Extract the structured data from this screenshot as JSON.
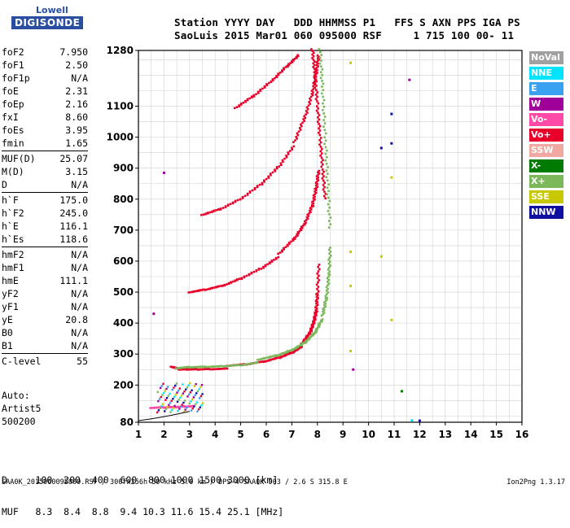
{
  "logo": {
    "line1": "Lowell",
    "line2": "DIGISONDE"
  },
  "header": {
    "line1": "Station YYYY DAY   DDD HHMMSS P1   FFS S AXN PPS IGA PS",
    "line2": "SaoLuis 2015 Mar01 060 095000 RSF     1 715 100 00- 11"
  },
  "params": [
    [
      {
        "name": "foF2",
        "value": "7.950"
      },
      {
        "name": "foF1",
        "value": "2.50"
      },
      {
        "name": "foF1p",
        "value": "N/A"
      },
      {
        "name": "foE",
        "value": "2.31"
      },
      {
        "name": "foEp",
        "value": "2.16"
      },
      {
        "name": "fxI",
        "value": "8.60"
      },
      {
        "name": "foEs",
        "value": "3.95"
      },
      {
        "name": "fmin",
        "value": "1.65"
      }
    ],
    [
      {
        "name": "MUF(D)",
        "value": "25.07"
      },
      {
        "name": "M(D)",
        "value": "3.15"
      },
      {
        "name": "D",
        "value": "N/A"
      }
    ],
    [
      {
        "name": "h`F",
        "value": "175.0"
      },
      {
        "name": "h`F2",
        "value": "245.0"
      },
      {
        "name": "h`E",
        "value": "116.1"
      },
      {
        "name": "h`Es",
        "value": "118.6"
      }
    ],
    [
      {
        "name": "hmF2",
        "value": "N/A"
      },
      {
        "name": "hmF1",
        "value": "N/A"
      },
      {
        "name": "hmE",
        "value": "111.1"
      },
      {
        "name": "yF2",
        "value": "N/A"
      },
      {
        "name": "yF1",
        "value": "N/A"
      },
      {
        "name": "yE",
        "value": "20.8"
      },
      {
        "name": "B0",
        "value": "N/A"
      },
      {
        "name": "B1",
        "value": "N/A"
      }
    ],
    [
      {
        "name": "C-level",
        "value": "55"
      }
    ]
  ],
  "status": {
    "line1": "Auto:",
    "line2": "Artist5",
    "line3": "500200"
  },
  "muf_table": {
    "d_row": "D     100  200  400  600  800 1000 1500 3000 [km]",
    "muf_row": "MUF   8.3  8.4  8.8  9.4 10.3 11.6 15.4 25.1 [MHz]"
  },
  "footer": {
    "left": "SAA0K_2015060095000.RSF / 300fx256h 50 kHz 5.0 km / DPS-4 SAA0K 903 / 2.6 S 315.8 E",
    "right": "Ion2Png 1.3.17"
  },
  "legend": [
    {
      "label": "NoVal",
      "color": "#a0a0a0"
    },
    {
      "label": "NNE",
      "color": "#00e5ff"
    },
    {
      "label": "E",
      "color": "#3aa0f0"
    },
    {
      "label": "W",
      "color": "#a0009a"
    },
    {
      "label": "Vo-",
      "color": "#ff4aa8"
    },
    {
      "label": "Vo+",
      "color": "#e8002a"
    },
    {
      "label": "SSW",
      "color": "#f0a8a0"
    },
    {
      "label": "X-",
      "color": "#007a00"
    },
    {
      "label": "X+",
      "color": "#7ab85a"
    },
    {
      "label": "SSE",
      "color": "#c8c800"
    },
    {
      "label": "NNW",
      "color": "#1010a0"
    }
  ],
  "chart_data": {
    "type": "scatter",
    "xlim": [
      1,
      16
    ],
    "ylim": [
      80,
      1280
    ],
    "xticks": [
      1,
      2,
      3,
      4,
      5,
      6,
      7,
      8,
      9,
      10,
      11,
      12,
      13,
      14,
      15,
      16
    ],
    "yticks": [
      80,
      200,
      300,
      400,
      500,
      600,
      700,
      800,
      900,
      1000,
      1100,
      1280
    ],
    "grid": true,
    "legend_position": "right",
    "traces": [
      {
        "name": "Vo+",
        "color": "#e8002a",
        "x": [
          2.3,
          2.6,
          2.9,
          3.3,
          3.8,
          4.5,
          5.2,
          5.9,
          6.5,
          7.0,
          7.4,
          7.7,
          7.85,
          7.95,
          8.0,
          8.05
        ],
        "y": [
          255,
          248,
          250,
          252,
          255,
          258,
          264,
          275,
          290,
          308,
          330,
          365,
          400,
          440,
          500,
          600
        ]
      },
      {
        "name": "X+",
        "color": "#7ab85a",
        "x": [
          2.5,
          3.0,
          3.6,
          4.3,
          5.0,
          5.7,
          6.4,
          7.0,
          7.5,
          7.9,
          8.2,
          8.35,
          8.45,
          8.5
        ],
        "y": [
          250,
          255,
          258,
          262,
          268,
          278,
          292,
          312,
          338,
          372,
          420,
          480,
          560,
          650
        ]
      },
      {
        "name": "Vo+",
        "color": "#e8002a",
        "x": [
          3.0,
          3.6,
          4.3,
          5.0,
          5.8,
          6.5,
          7.1,
          7.5,
          7.8,
          7.95,
          8.05
        ],
        "y": [
          495,
          505,
          520,
          545,
          580,
          620,
          670,
          720,
          780,
          840,
          900
        ]
      },
      {
        "name": "Vo+",
        "color": "#e8002a",
        "x": [
          3.5,
          4.2,
          5.0,
          5.8,
          6.5,
          7.1,
          7.5,
          7.8,
          7.95,
          8.05
        ],
        "y": [
          745,
          765,
          800,
          850,
          910,
          980,
          1060,
          1140,
          1210,
          1270
        ]
      },
      {
        "name": "Vo+",
        "color": "#e8002a",
        "x": [
          4.8,
          5.5,
          6.2,
          6.8,
          7.3
        ],
        "y": [
          1090,
          1130,
          1180,
          1230,
          1270
        ]
      },
      {
        "name": "Vo+",
        "color": "#e8002a",
        "x": [
          7.8,
          7.9,
          8.0,
          8.1,
          8.2,
          8.3
        ],
        "y": [
          1280,
          1200,
          1100,
          1000,
          900,
          800
        ]
      },
      {
        "name": "X+",
        "color": "#7ab85a",
        "x": [
          8.1,
          8.2,
          8.3,
          8.4,
          8.5
        ],
        "y": [
          1280,
          1150,
          1000,
          850,
          700
        ]
      },
      {
        "name": "Vo-",
        "color": "#ff4aa8",
        "x": [
          1.5,
          2.0,
          2.4,
          2.8,
          3.2
        ],
        "y": [
          122,
          125,
          128,
          132,
          135
        ]
      }
    ],
    "isolated_points": [
      {
        "name": "W",
        "color": "#a0009a",
        "x": 2.0,
        "y": 885
      },
      {
        "name": "W",
        "color": "#a0009a",
        "x": 1.6,
        "y": 430
      },
      {
        "name": "W",
        "color": "#a0009a",
        "x": 11.6,
        "y": 1185
      },
      {
        "name": "NNW",
        "color": "#1010a0",
        "x": 10.9,
        "y": 1075
      },
      {
        "name": "NNW",
        "color": "#1010a0",
        "x": 10.5,
        "y": 965
      },
      {
        "name": "NNW",
        "color": "#1010a0",
        "x": 10.9,
        "y": 980
      },
      {
        "name": "NNW",
        "color": "#1010a0",
        "x": 12.0,
        "y": 85
      },
      {
        "name": "SSE",
        "color": "#c8c800",
        "x": 9.3,
        "y": 1240
      },
      {
        "name": "SSE",
        "color": "#c8c800",
        "x": 10.9,
        "y": 870
      },
      {
        "name": "SSE",
        "color": "#c8c800",
        "x": 9.3,
        "y": 630
      },
      {
        "name": "SSE",
        "color": "#c8c800",
        "x": 10.5,
        "y": 615
      },
      {
        "name": "SSE",
        "color": "#c8c800",
        "x": 9.3,
        "y": 520
      },
      {
        "name": "SSE",
        "color": "#c8c800",
        "x": 10.9,
        "y": 410
      },
      {
        "name": "SSE",
        "color": "#c8c800",
        "x": 9.3,
        "y": 310
      },
      {
        "name": "X-",
        "color": "#007a00",
        "x": 11.3,
        "y": 180
      },
      {
        "name": "W",
        "color": "#a0009a",
        "x": 9.4,
        "y": 250
      },
      {
        "name": "NNE",
        "color": "#00e5ff",
        "x": 11.7,
        "y": 86
      }
    ]
  }
}
